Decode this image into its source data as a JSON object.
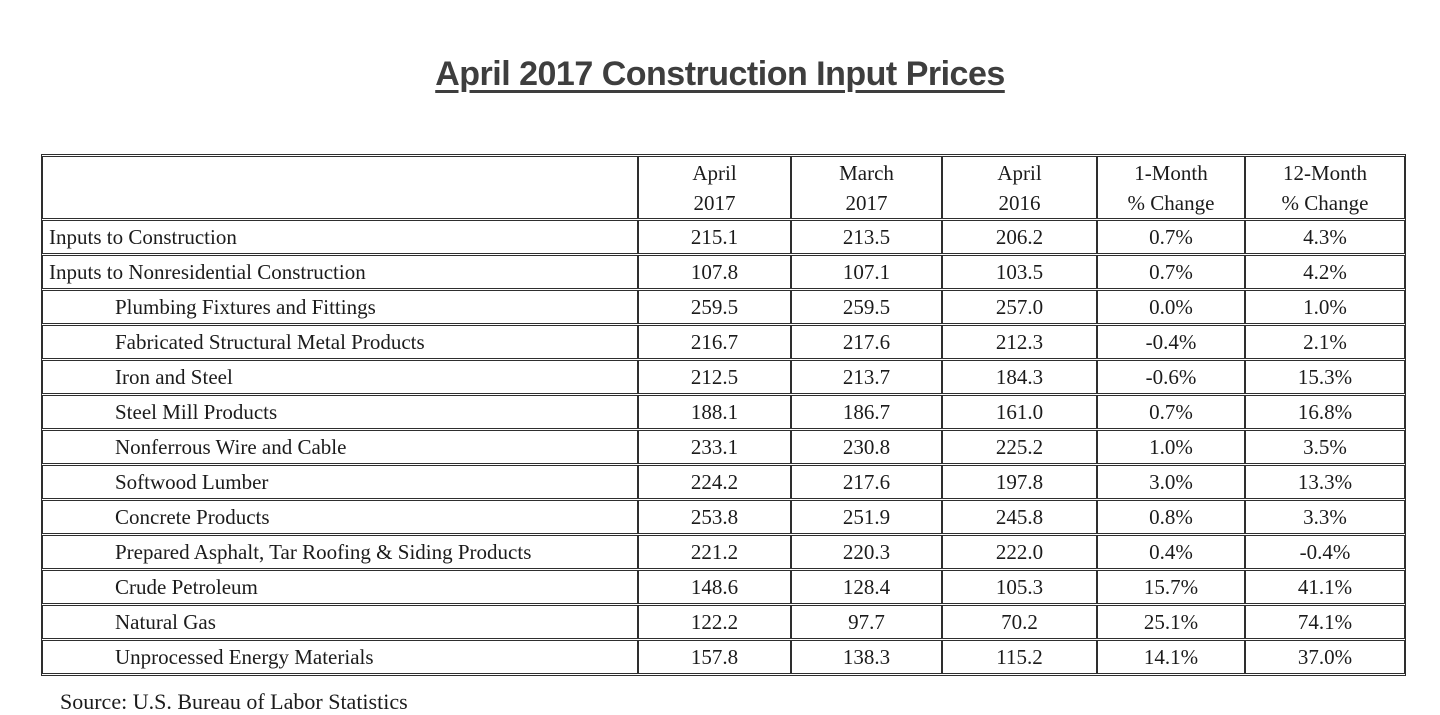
{
  "page": {
    "title": "April 2017 Construction Input Prices",
    "source_note": "Source: U.S. Bureau of Labor Statistics"
  },
  "table": {
    "headers": [
      {
        "line1": "",
        "line2": ""
      },
      {
        "line1": "April",
        "line2": "2017"
      },
      {
        "line1": "March",
        "line2": "2017"
      },
      {
        "line1": "April",
        "line2": "2016"
      },
      {
        "line1": "1-Month",
        "line2": "% Change"
      },
      {
        "line1": "12-Month",
        "line2": "% Change"
      }
    ],
    "rows": [
      {
        "label": "Inputs to Construction",
        "indent": false,
        "values": [
          "215.1",
          "213.5",
          "206.2",
          "0.7%",
          "4.3%"
        ]
      },
      {
        "label": "Inputs to Nonresidential Construction",
        "indent": false,
        "values": [
          "107.8",
          "107.1",
          "103.5",
          "0.7%",
          "4.2%"
        ]
      },
      {
        "label": "Plumbing Fixtures and Fittings",
        "indent": true,
        "values": [
          "259.5",
          "259.5",
          "257.0",
          "0.0%",
          "1.0%"
        ]
      },
      {
        "label": "Fabricated Structural Metal Products",
        "indent": true,
        "values": [
          "216.7",
          "217.6",
          "212.3",
          "-0.4%",
          "2.1%"
        ]
      },
      {
        "label": "Iron and Steel",
        "indent": true,
        "values": [
          "212.5",
          "213.7",
          "184.3",
          "-0.6%",
          "15.3%"
        ]
      },
      {
        "label": "Steel Mill Products",
        "indent": true,
        "values": [
          "188.1",
          "186.7",
          "161.0",
          "0.7%",
          "16.8%"
        ]
      },
      {
        "label": "Nonferrous Wire and Cable",
        "indent": true,
        "values": [
          "233.1",
          "230.8",
          "225.2",
          "1.0%",
          "3.5%"
        ]
      },
      {
        "label": "Softwood Lumber",
        "indent": true,
        "values": [
          "224.2",
          "217.6",
          "197.8",
          "3.0%",
          "13.3%"
        ]
      },
      {
        "label": "Concrete Products",
        "indent": true,
        "values": [
          "253.8",
          "251.9",
          "245.8",
          "0.8%",
          "3.3%"
        ]
      },
      {
        "label": "Prepared Asphalt, Tar Roofing & Siding Products",
        "indent": true,
        "values": [
          "221.2",
          "220.3",
          "222.0",
          "0.4%",
          "-0.4%"
        ]
      },
      {
        "label": "Crude Petroleum",
        "indent": true,
        "values": [
          "148.6",
          "128.4",
          "105.3",
          "15.7%",
          "41.1%"
        ]
      },
      {
        "label": "Natural Gas",
        "indent": true,
        "values": [
          "122.2",
          "97.7",
          "70.2",
          "25.1%",
          "74.1%"
        ]
      },
      {
        "label": "Unprocessed Energy Materials",
        "indent": true,
        "values": [
          "157.8",
          "138.3",
          "115.2",
          "14.1%",
          "37.0%"
        ]
      }
    ]
  },
  "chart_data": {
    "type": "table",
    "title": "April 2017 Construction Input Prices",
    "columns": [
      "",
      "April 2017",
      "March 2017",
      "April 2016",
      "1-Month % Change",
      "12-Month % Change"
    ],
    "rows": [
      [
        "Inputs to Construction",
        215.1,
        213.5,
        206.2,
        "0.7%",
        "4.3%"
      ],
      [
        "Inputs to Nonresidential Construction",
        107.8,
        107.1,
        103.5,
        "0.7%",
        "4.2%"
      ],
      [
        "Plumbing Fixtures and Fittings",
        259.5,
        259.5,
        257.0,
        "0.0%",
        "1.0%"
      ],
      [
        "Fabricated Structural Metal Products",
        216.7,
        217.6,
        212.3,
        "-0.4%",
        "2.1%"
      ],
      [
        "Iron and Steel",
        212.5,
        213.7,
        184.3,
        "-0.6%",
        "15.3%"
      ],
      [
        "Steel Mill Products",
        188.1,
        186.7,
        161.0,
        "0.7%",
        "16.8%"
      ],
      [
        "Nonferrous Wire and Cable",
        233.1,
        230.8,
        225.2,
        "1.0%",
        "3.5%"
      ],
      [
        "Softwood Lumber",
        224.2,
        217.6,
        197.8,
        "3.0%",
        "13.3%"
      ],
      [
        "Concrete Products",
        253.8,
        251.9,
        245.8,
        "0.8%",
        "3.3%"
      ],
      [
        "Prepared Asphalt, Tar Roofing & Siding Products",
        221.2,
        220.3,
        222.0,
        "0.4%",
        "-0.4%"
      ],
      [
        "Crude Petroleum",
        148.6,
        128.4,
        105.3,
        "15.7%",
        "41.1%"
      ],
      [
        "Natural Gas",
        122.2,
        97.7,
        70.2,
        "25.1%",
        "74.1%"
      ],
      [
        "Unprocessed Energy Materials",
        157.8,
        138.3,
        115.2,
        "14.1%",
        "37.0%"
      ]
    ],
    "source": "Source: U.S. Bureau of Labor Statistics"
  }
}
